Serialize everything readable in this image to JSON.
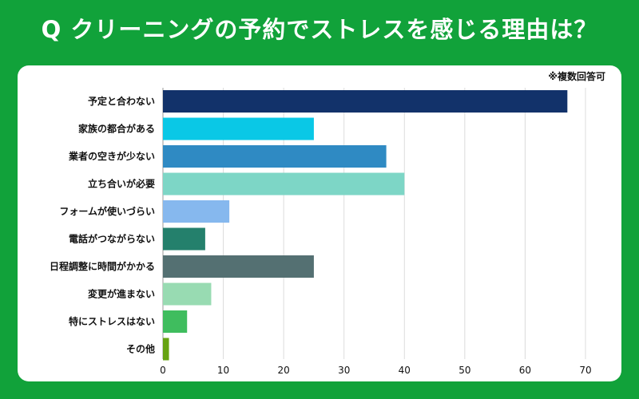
{
  "title": "Q クリーニングの予約でストレスを感じる理由は？",
  "note": "※複数回答可",
  "chart_data": {
    "type": "bar",
    "orientation": "horizontal",
    "categories": [
      "予定と合わない",
      "家族の都合がある",
      "業者の空きが少ない",
      "立ち合いが必要",
      "フォームが使いづらい",
      "電話がつながらない",
      "日程調整に時間がかかる",
      "変更が進まない",
      "特にストレスはない",
      "その他"
    ],
    "values": [
      67,
      25,
      37,
      40,
      11,
      7,
      25,
      8,
      4,
      1
    ],
    "colors": [
      "#12326a",
      "#0ac8e6",
      "#2f8ac3",
      "#7dd6c6",
      "#86b8ee",
      "#24806c",
      "#547072",
      "#98dbb2",
      "#3fbd5e",
      "#66a312"
    ],
    "xlim": [
      0,
      70
    ],
    "xticks": [
      0,
      10,
      20,
      30,
      40,
      50,
      60,
      70
    ],
    "grid": true
  }
}
